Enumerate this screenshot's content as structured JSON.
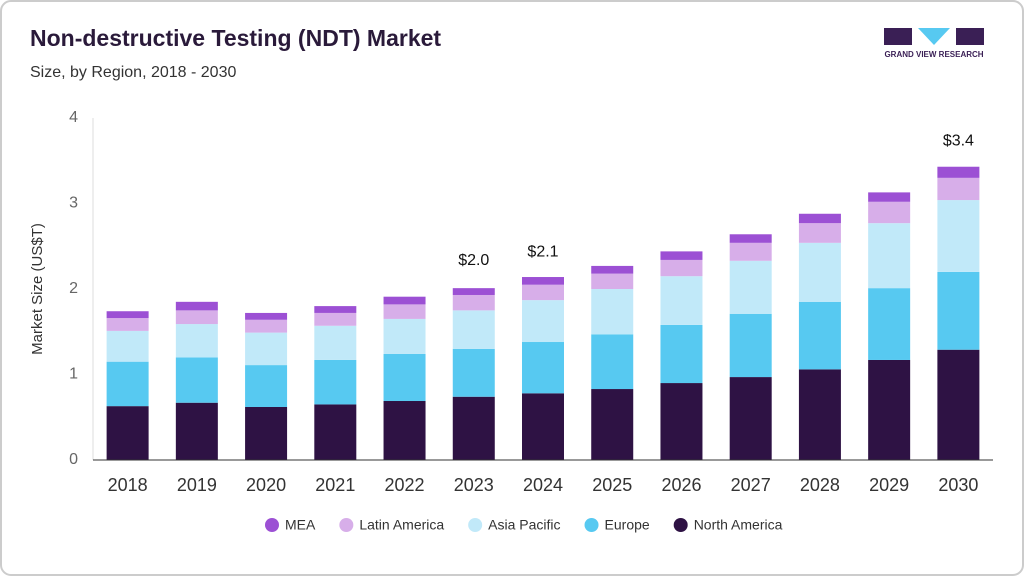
{
  "chart_data": {
    "type": "stacked_bar",
    "title": "Non-destructive Testing (NDT) Market",
    "subtitle": "Size, by Region, 2018 - 2030",
    "logo": "GRAND VIEW RESEARCH",
    "y_label": "Market Size (US$T)",
    "categories": [
      "2018",
      "2019",
      "2020",
      "2021",
      "2022",
      "2023",
      "2024",
      "2025",
      "2026",
      "2027",
      "2028",
      "2029",
      "2030"
    ],
    "series": [
      {
        "name": "North America",
        "color": "#2e1244",
        "values": [
          0.63,
          0.67,
          0.62,
          0.65,
          0.69,
          0.74,
          0.78,
          0.83,
          0.9,
          0.97,
          1.06,
          1.17,
          1.29
        ]
      },
      {
        "name": "Europe",
        "color": "#57c9f1",
        "values": [
          0.52,
          0.53,
          0.49,
          0.52,
          0.55,
          0.56,
          0.6,
          0.64,
          0.68,
          0.74,
          0.79,
          0.84,
          0.91
        ]
      },
      {
        "name": "Asia Pacific",
        "color": "#c1e9f9",
        "values": [
          0.36,
          0.39,
          0.38,
          0.4,
          0.41,
          0.45,
          0.49,
          0.53,
          0.57,
          0.62,
          0.69,
          0.76,
          0.84
        ]
      },
      {
        "name": "Latin America",
        "color": "#d7aee9",
        "values": [
          0.15,
          0.16,
          0.15,
          0.15,
          0.17,
          0.18,
          0.18,
          0.18,
          0.19,
          0.21,
          0.23,
          0.25,
          0.26
        ]
      },
      {
        "name": "MEA",
        "color": "#9c50d4",
        "values": [
          0.08,
          0.1,
          0.08,
          0.08,
          0.09,
          0.08,
          0.09,
          0.09,
          0.1,
          0.1,
          0.11,
          0.11,
          0.13
        ]
      }
    ],
    "totals": {
      "categories": [
        "2023",
        "2024",
        "2030"
      ],
      "values": [
        2.0,
        2.1,
        3.4
      ],
      "value_labels": [
        "$2.0",
        "$2.1",
        "$3.4"
      ]
    },
    "ylim": [
      0,
      4
    ],
    "yticks": [
      0,
      1,
      2,
      3,
      4
    ],
    "grid": false
  }
}
